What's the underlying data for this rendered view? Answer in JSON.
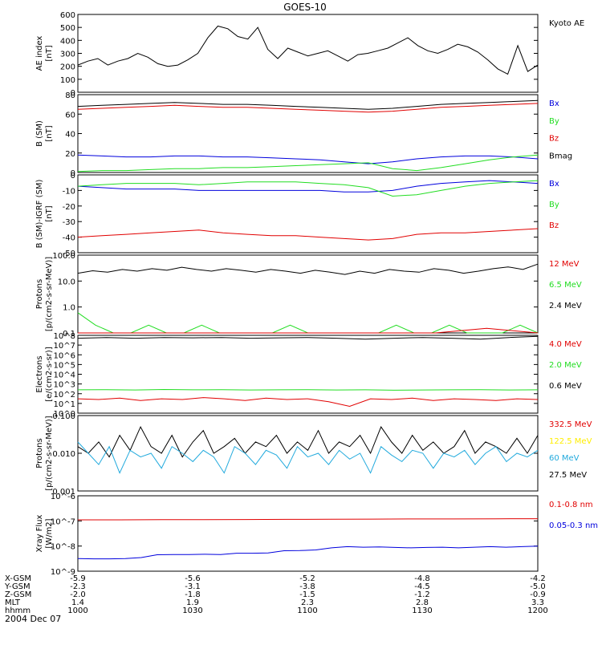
{
  "title": "GOES-10",
  "date_label": "2004 Dec 07",
  "colors": {
    "black": "#000000",
    "red": "#e10000",
    "green": "#22dd22",
    "blue": "#0000dd",
    "yellow": "#ffee00",
    "cyan": "#22aadd",
    "orange": "#ff7700"
  },
  "footer": {
    "rows": [
      {
        "label": "X-GSM",
        "values": [
          "-5.9",
          "-5.6",
          "-5.2",
          "-4.8",
          "-4.2"
        ]
      },
      {
        "label": "Y-GSM",
        "values": [
          "-2.3",
          "-3.1",
          "-3.8",
          "-4.5",
          "-5.0"
        ]
      },
      {
        "label": "Z-GSM",
        "values": [
          "-2.0",
          "-1.8",
          "-1.5",
          "-1.2",
          "-0.9"
        ]
      },
      {
        "label": "MLT",
        "values": [
          "1.4",
          "1.9",
          "2.3",
          "2.8",
          "3.3"
        ]
      },
      {
        "label": "hhmm",
        "values": [
          "1000",
          "1030",
          "1100",
          "1130",
          "1200"
        ]
      }
    ]
  },
  "chart_data": [
    {
      "type": "line",
      "ylabel": "AE index\n[nT]",
      "ylim": [
        0,
        600
      ],
      "yticks": [
        "0",
        "100",
        "200",
        "300",
        "400",
        "500",
        "600"
      ],
      "legend": [
        {
          "name": "Kyoto AE",
          "color": "black"
        }
      ],
      "x_range": [
        0,
        120
      ],
      "series": [
        {
          "name": "Kyoto AE",
          "color": "black",
          "values": [
            210,
            240,
            260,
            210,
            240,
            260,
            300,
            270,
            220,
            200,
            210,
            250,
            300,
            420,
            510,
            490,
            430,
            410,
            500,
            330,
            260,
            340,
            310,
            280,
            300,
            320,
            280,
            240,
            290,
            300,
            320,
            340,
            380,
            420,
            360,
            320,
            300,
            330,
            370,
            350,
            310,
            250,
            180,
            140,
            360,
            160,
            210
          ]
        }
      ]
    },
    {
      "type": "line",
      "ylabel": "B (SM)\n[nT]",
      "ylim": [
        0,
        80
      ],
      "yticks": [
        "0",
        "20",
        "40",
        "60",
        "80"
      ],
      "legend": [
        {
          "name": "Bx",
          "color": "blue"
        },
        {
          "name": "By",
          "color": "green"
        },
        {
          "name": "Bz",
          "color": "red"
        },
        {
          "name": "Bmag",
          "color": "black"
        }
      ],
      "x_range": [
        0,
        120
      ],
      "series": [
        {
          "name": "Bmag",
          "color": "black",
          "values": [
            68,
            69,
            70,
            71,
            72,
            71,
            70,
            70,
            69,
            68,
            67,
            66,
            65,
            66,
            68,
            70,
            71,
            72,
            73,
            74
          ]
        },
        {
          "name": "Bz",
          "color": "red",
          "values": [
            65,
            66,
            67,
            68,
            69,
            68,
            67,
            67,
            66,
            65,
            64,
            63,
            62,
            63,
            65,
            67,
            68,
            69,
            70,
            71
          ]
        },
        {
          "name": "Bx",
          "color": "blue",
          "values": [
            18,
            17,
            16,
            16,
            17,
            17,
            16,
            16,
            15,
            14,
            13,
            11,
            9,
            11,
            14,
            16,
            17,
            17,
            16,
            14
          ]
        },
        {
          "name": "By",
          "color": "green",
          "values": [
            1,
            2,
            2,
            3,
            4,
            4,
            5,
            5,
            6,
            7,
            8,
            9,
            10,
            4,
            2,
            5,
            9,
            13,
            16,
            18
          ]
        }
      ]
    },
    {
      "type": "line",
      "ylabel": "B (SM)-IGRF (SM)\n[nT]",
      "ylim": [
        -50,
        5
      ],
      "yticks": [
        "-50",
        "-40",
        "-30",
        "-20",
        "-10",
        "0"
      ],
      "legend": [
        {
          "name": "Bx",
          "color": "blue"
        },
        {
          "name": "By",
          "color": "green"
        },
        {
          "name": "Bz",
          "color": "red"
        }
      ],
      "x_range": [
        0,
        120
      ],
      "series": [
        {
          "name": "Bz",
          "color": "red",
          "values": [
            -39,
            -38,
            -37,
            -36,
            -35,
            -34,
            -36,
            -37,
            -38,
            -38,
            -39,
            -40,
            -41,
            -40,
            -37,
            -36,
            -36,
            -35,
            -34,
            -33
          ]
        },
        {
          "name": "Bx",
          "color": "blue",
          "values": [
            -3,
            -4,
            -5,
            -5,
            -5,
            -6,
            -6,
            -6,
            -6,
            -6,
            -6,
            -7,
            -7,
            -6,
            -3,
            -1,
            0,
            1,
            0,
            -1
          ]
        },
        {
          "name": "By",
          "color": "green",
          "values": [
            -3,
            -2,
            -1,
            -1,
            -1,
            -2,
            -1,
            0,
            0,
            0,
            -1,
            -2,
            -4,
            -10,
            -9,
            -6,
            -3,
            -1,
            0,
            1
          ]
        }
      ]
    },
    {
      "type": "line",
      "ylabel": "Protons\n[p/(cm2-s-sr-MeV)]",
      "scale": "log",
      "ylim": [
        0.1,
        100
      ],
      "yticks": [
        "0.1",
        "1.0",
        "10.0",
        "100.0"
      ],
      "legend": [
        {
          "name": "12 MeV",
          "color": "red"
        },
        {
          "name": "6.5 MeV",
          "color": "green"
        },
        {
          "name": "2.4 MeV",
          "color": "black"
        }
      ],
      "x_range": [
        0,
        120
      ],
      "series": [
        {
          "name": "2.4 MeV",
          "color": "black",
          "values": [
            20,
            25,
            22,
            28,
            24,
            30,
            26,
            34,
            28,
            24,
            30,
            26,
            22,
            28,
            24,
            20,
            26,
            22,
            18,
            24,
            20,
            28,
            24,
            22,
            30,
            26,
            20,
            24,
            30,
            35,
            28,
            45
          ]
        },
        {
          "name": "6.5 MeV",
          "color": "green",
          "values": [
            0.6,
            0.2,
            0.1,
            0.1,
            0.2,
            0.1,
            0.1,
            0.2,
            0.1,
            0.1,
            0.1,
            0.1,
            0.2,
            0.1,
            0.1,
            0.1,
            0.1,
            0.1,
            0.2,
            0.1,
            0.1,
            0.2,
            0.1,
            0.1,
            0.1,
            0.2,
            0.1
          ]
        },
        {
          "name": "12 MeV",
          "color": "red",
          "values": [
            0.1,
            0.1,
            0.1,
            0.1,
            0.1,
            0.1,
            0.1,
            0.1,
            0.15,
            0.1
          ]
        }
      ]
    },
    {
      "type": "line",
      "ylabel": "Electrons\n[e/(cm2-s-sr)]",
      "scale": "log",
      "ylim": [
        1,
        100000000.0
      ],
      "yticks": [
        "10^0",
        "10^1",
        "10^2",
        "10^3",
        "10^4",
        "10^5",
        "10^6",
        "10^7",
        "10^8"
      ],
      "legend": [
        {
          "name": "4.0 MeV",
          "color": "red"
        },
        {
          "name": "2.0 MeV",
          "color": "green"
        },
        {
          "name": "0.6 MeV",
          "color": "black"
        }
      ],
      "x_range": [
        0,
        120
      ],
      "series": [
        {
          "name": "0.6 MeV",
          "color": "black",
          "values": [
            50000000.0,
            60000000.0,
            50000000.0,
            60000000.0,
            55000000.0,
            60000000.0,
            50000000.0,
            55000000.0,
            60000000.0,
            50000000.0,
            40000000.0,
            50000000.0,
            60000000.0,
            50000000.0,
            40000000.0,
            60000000.0,
            80000000.0
          ]
        },
        {
          "name": "2.0 MeV",
          "color": "green",
          "values": [
            250,
            260,
            240,
            270,
            250,
            260,
            240,
            250,
            260,
            240,
            250,
            230,
            240,
            250,
            260,
            240,
            250
          ]
        },
        {
          "name": "4.0 MeV",
          "color": "red",
          "values": [
            30,
            25,
            35,
            20,
            30,
            25,
            40,
            30,
            20,
            35,
            25,
            30,
            15,
            5,
            30,
            25,
            35,
            20,
            30,
            25,
            20,
            30,
            25
          ]
        }
      ]
    },
    {
      "type": "line",
      "ylabel": "Protons\n[p/(cm2-s-sr-MeV)]",
      "scale": "log",
      "ylim": [
        0.001,
        0.1
      ],
      "yticks": [
        "0.001",
        "0.010",
        "0.100"
      ],
      "legend": [
        {
          "name": "332.5 MeV",
          "color": "red"
        },
        {
          "name": "122.5 MeV",
          "color": "yellow"
        },
        {
          "name": "60 MeV",
          "color": "cyan"
        },
        {
          "name": "27.5 MeV",
          "color": "black"
        }
      ],
      "x_range": [
        0,
        120
      ],
      "series": [
        {
          "name": "27.5 MeV",
          "color": "black",
          "values": [
            0.015,
            0.01,
            0.02,
            0.008,
            0.03,
            0.012,
            0.05,
            0.015,
            0.01,
            0.03,
            0.008,
            0.02,
            0.04,
            0.01,
            0.015,
            0.025,
            0.01,
            0.02,
            0.015,
            0.03,
            0.01,
            0.02,
            0.012,
            0.04,
            0.01,
            0.02,
            0.015,
            0.03,
            0.01,
            0.05,
            0.02,
            0.01,
            0.03,
            0.012,
            0.02,
            0.01,
            0.015,
            0.04,
            0.01,
            0.02,
            0.015,
            0.01,
            0.025,
            0.01,
            0.03
          ]
        },
        {
          "name": "60 MeV",
          "color": "cyan",
          "values": [
            0.02,
            0.01,
            0.005,
            0.015,
            0.003,
            0.012,
            0.008,
            0.01,
            0.004,
            0.015,
            0.01,
            0.006,
            0.012,
            0.008,
            0.003,
            0.015,
            0.01,
            0.005,
            0.012,
            0.009,
            0.004,
            0.015,
            0.008,
            0.01,
            0.005,
            0.012,
            0.007,
            0.01,
            0.003,
            0.015,
            0.009,
            0.006,
            0.012,
            0.01,
            0.004,
            0.01,
            0.008,
            0.012,
            0.005,
            0.01,
            0.015,
            0.006,
            0.01,
            0.008,
            0.012
          ]
        }
      ]
    },
    {
      "type": "line",
      "ylabel": "Xray Flux\n[W/m2]",
      "scale": "log",
      "ylim": [
        1e-09,
        1e-06
      ],
      "yticks": [
        "10^-9",
        "10^-8",
        "10^-7",
        "10^-6"
      ],
      "legend": [
        {
          "name": "0.1-0.8 nm",
          "color": "red"
        },
        {
          "name": "0.05-0.3 nm",
          "color": "blue"
        }
      ],
      "x_range": [
        0,
        120
      ],
      "series": [
        {
          "name": "0.1-0.8 nm",
          "color": "red",
          "values": [
            1.1e-07,
            1.1e-07,
            1.12e-07,
            1.13e-07,
            1.14e-07,
            1.15e-07,
            1.16e-07,
            1.18e-07,
            1.2e-07,
            1.2e-07,
            1.21e-07,
            1.22e-07
          ]
        },
        {
          "name": "0.05-0.3 nm",
          "color": "blue",
          "values": [
            3.2e-09,
            3.1e-09,
            3.1e-09,
            3.2e-09,
            3.5e-09,
            4.5e-09,
            4.6e-09,
            4.6e-09,
            4.7e-09,
            4.6e-09,
            5.2e-09,
            5.2e-09,
            5.3e-09,
            6.5e-09,
            6.6e-09,
            7e-09,
            8.5e-09,
            9.5e-09,
            9e-09,
            9.2e-09,
            8.8e-09,
            8.5e-09,
            8.8e-09,
            9e-09,
            8.5e-09,
            9e-09,
            9.5e-09,
            9e-09,
            9.5e-09,
            1e-08
          ]
        }
      ]
    }
  ]
}
